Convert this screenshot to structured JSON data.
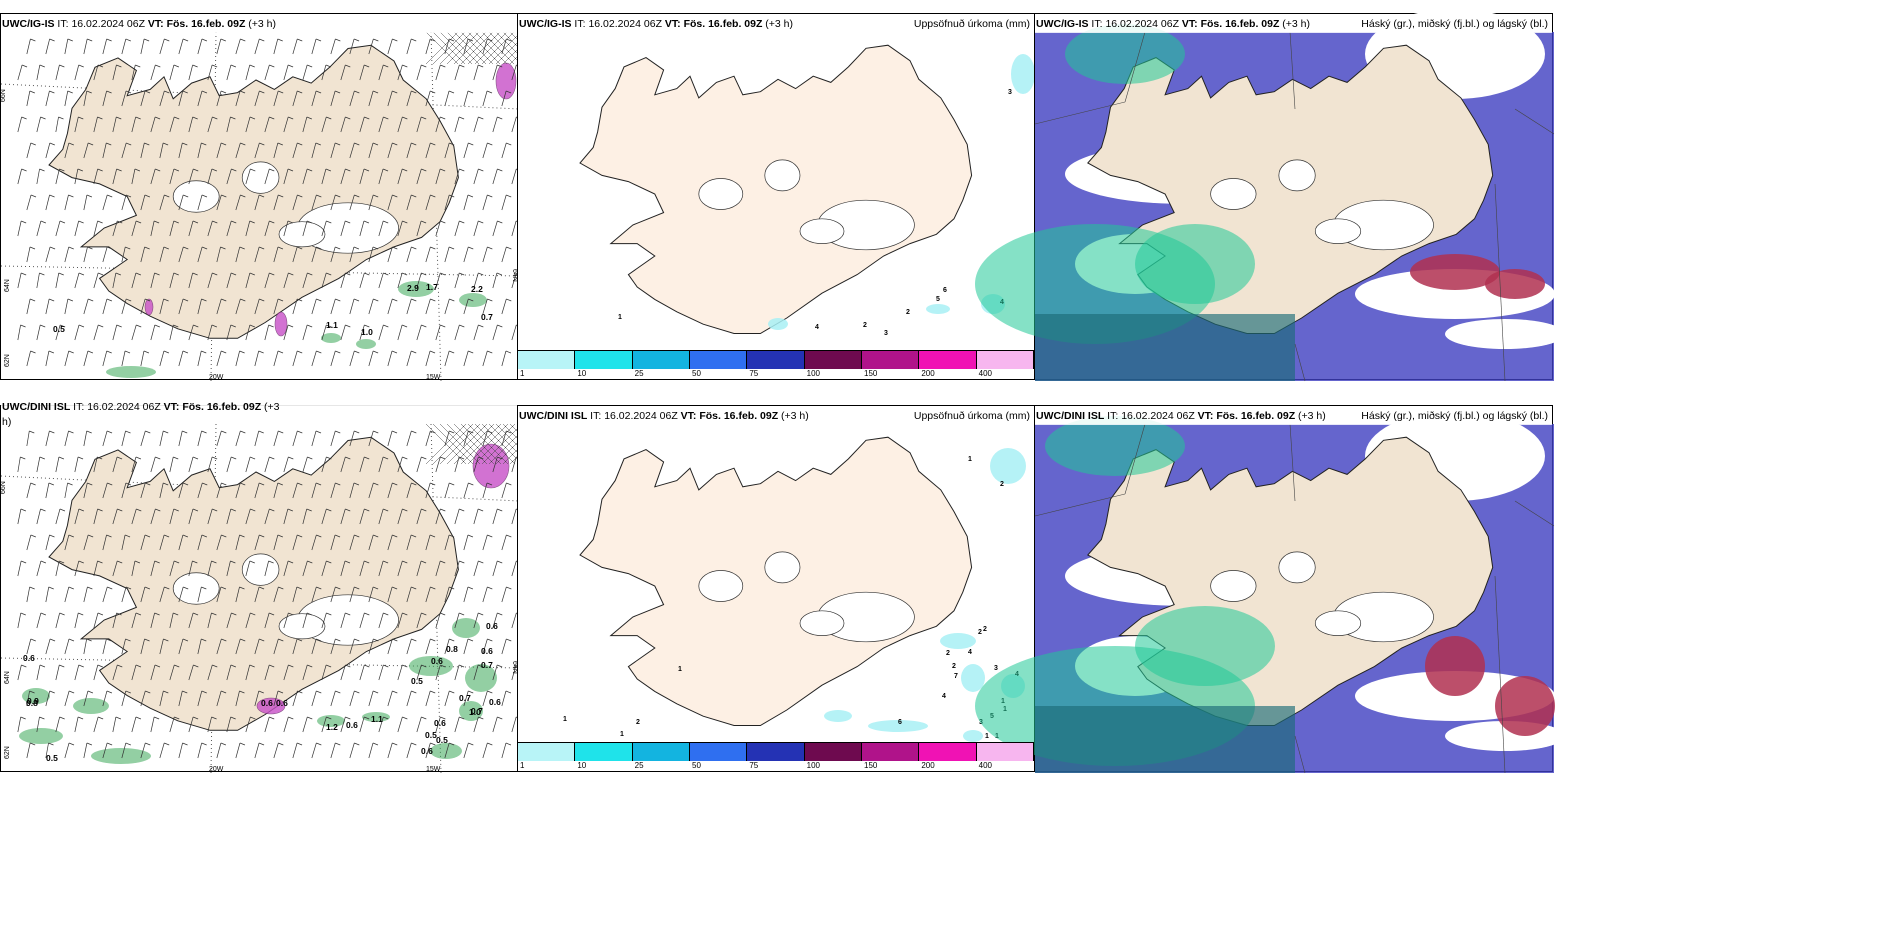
{
  "panels": [
    {
      "model": "UWC/IG-IS",
      "it_label": "IT:",
      "it": "16.02.2024 06Z",
      "vt_label": "VT:",
      "vt": "Fös. 16.feb. 09Z",
      "lead": "(+3 h)",
      "right_title": "",
      "axis_labels": {
        "lat_top": "66N",
        "lat_mid": "64N",
        "lat_bot": "62N",
        "lon_a": "20W",
        "lon_b": "15W",
        "lat_right": "64N"
      },
      "values": [
        "0.5",
        "1.1",
        "1.0",
        "2.2",
        "0.7",
        "2.9",
        "1.7"
      ]
    },
    {
      "model": "UWC/IG-IS",
      "it_label": "IT:",
      "it": "16.02.2024 06Z",
      "vt_label": "VT:",
      "vt": "Fös. 16.feb. 09Z",
      "lead": "(+3 h)",
      "right_title": "Uppsöfnuð úrkoma (mm)",
      "values": [
        "3",
        "1",
        "4",
        "2",
        "3",
        "2",
        "5",
        "6",
        "4"
      ]
    },
    {
      "model": "UWC/IG-IS",
      "it_label": "IT:",
      "it": "16.02.2024 06Z",
      "vt_label": "VT:",
      "vt": "Fös. 16.feb. 09Z",
      "lead": "(+3 h)",
      "right_title": "Háský (gr.), miðský (fj.bl.) og lágský (bl.)"
    },
    {
      "model": "UWC/DINI ISL",
      "it_label": "IT:",
      "it": "16.02.2024 06Z",
      "vt_label": "VT:",
      "vt": "Fös. 16.feb. 09Z",
      "lead": "(+3",
      "lead2": "h)",
      "right_title": "",
      "axis_labels": {
        "lat_top": "66N",
        "lat_mid": "64N",
        "lat_bot": "62N",
        "lon_a": "20W",
        "lon_b": "15W",
        "lat_right": "64N"
      },
      "values": [
        "0.6",
        "0.8",
        "0.6",
        "0.5",
        "1.2",
        "0.6",
        "1.1",
        "0.7",
        "0.5",
        "0.6",
        "0.7",
        "1.0",
        "0.6",
        "0.8",
        "0.6",
        "0.7",
        "0.6",
        "0.6",
        "0.5",
        "0.9",
        "0.6",
        "0.6",
        "0.5"
      ]
    },
    {
      "model": "UWC/DINI ISL",
      "it_label": "IT:",
      "it": "16.02.2024 06Z",
      "vt_label": "VT:",
      "vt": "Fös. 16.feb. 09Z",
      "lead": "(+3 h)",
      "right_title": "Uppsöfnuð úrkoma (mm)",
      "values": [
        "1",
        "2",
        "1",
        "1",
        "2",
        "1",
        "2",
        "3",
        "4",
        "2",
        "2",
        "4",
        "7",
        "2",
        "4",
        "3",
        "5",
        "1",
        "1",
        "1",
        "1",
        "6"
      ]
    },
    {
      "model": "UWC/DINI ISL",
      "it_label": "IT:",
      "it": "16.02.2024 06Z",
      "vt_label": "VT:",
      "vt": "Fös. 16.feb. 09Z",
      "lead": "(+3 h)",
      "right_title": "Háský (gr.), miðský (fj.bl.) og lágský (bl.)"
    }
  ],
  "legend": {
    "labels": [
      "1",
      "10",
      "25",
      "50",
      "75",
      "100",
      "150",
      "200",
      "400"
    ],
    "colors": [
      "#b8f4f7",
      "#1fe3ea",
      "#13b4e0",
      "#2f6ff0",
      "#2432b4",
      "#6e0a4f",
      "#b0138a",
      "#f012b4",
      "#f7b6ef"
    ]
  },
  "colors": {
    "land": "#f1e4d2",
    "land_light": "#fdf0e4",
    "sea": "#ffffff",
    "precip_green": "#3aa858",
    "precip_pink": "#c850c8",
    "cloud_high": "#20c898",
    "cloud_mid": "#3f3fc0",
    "cloud_low": "#b03050",
    "precip_cyan": "#a8f0f4"
  },
  "icons": [
    "wind-barb-icon",
    "hatch-pattern-icon"
  ]
}
